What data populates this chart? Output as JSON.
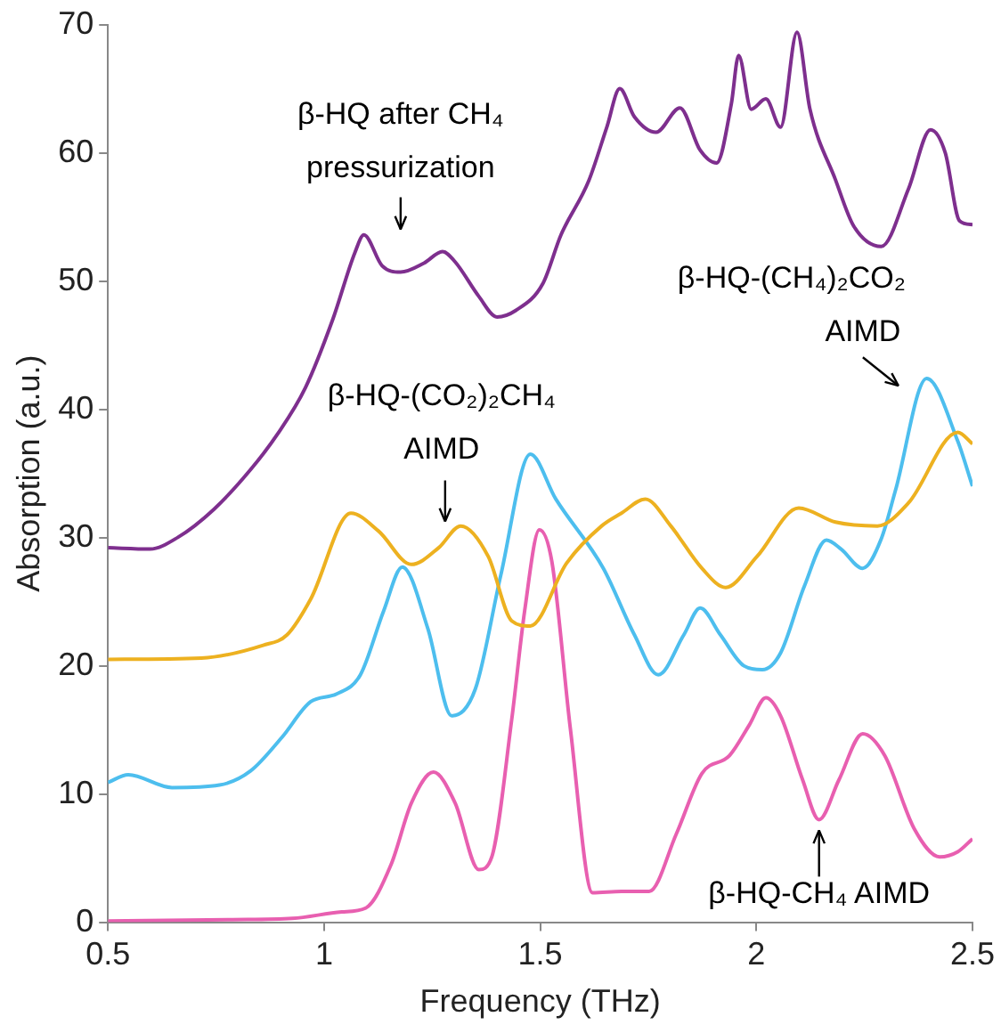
{
  "chart_data": {
    "type": "line",
    "xlabel": "Frequency (THz)",
    "ylabel": "Absorption (a.u.)",
    "xlim": [
      0.5,
      2.5
    ],
    "xticks": [
      0.5,
      1,
      1.5,
      2,
      2.5
    ],
    "ylim": [
      0,
      70
    ],
    "yticks": [
      0,
      10,
      20,
      30,
      40,
      50,
      60,
      70
    ],
    "grid": false,
    "legend": false,
    "series": [
      {
        "color": "#7e2f8e",
        "x": [
          0.5,
          0.597,
          0.661,
          0.745,
          0.83,
          0.893,
          0.957,
          1.02,
          1.071,
          1.092,
          1.134,
          1.177,
          1.231,
          1.274,
          1.303,
          1.358,
          1.4,
          1.443,
          1.506,
          1.548,
          1.612,
          1.654,
          1.684,
          1.718,
          1.768,
          1.823,
          1.87,
          1.908,
          1.942,
          1.959,
          1.988,
          2.022,
          2.056,
          2.094,
          2.124,
          2.183,
          2.225,
          2.289,
          2.352,
          2.403,
          2.437,
          2.47,
          2.5
        ],
        "values": [
          29.2,
          29.1,
          30,
          32.2,
          35.3,
          38.1,
          41.7,
          47,
          52.2,
          53.6,
          51.2,
          50.7,
          51.4,
          52.3,
          51.5,
          48.8,
          47.2,
          47.7,
          49.8,
          53.6,
          57.8,
          62,
          65,
          62.8,
          61.6,
          63.5,
          60.2,
          59.2,
          63.8,
          67.6,
          63.4,
          64.2,
          62,
          69.4,
          63.4,
          57.9,
          54.3,
          52.7,
          57.2,
          61.8,
          60,
          54.7,
          54.4
        ]
      },
      {
        "color": "#edb120",
        "x": [
          0.5,
          0.716,
          0.859,
          0.914,
          0.969,
          1.062,
          1.126,
          1.202,
          1.265,
          1.316,
          1.38,
          1.434,
          1.477,
          1.561,
          1.642,
          1.688,
          1.743,
          1.802,
          1.874,
          1.929,
          2.001,
          2.098,
          2.183,
          2.28,
          2.352,
          2.466,
          2.5
        ],
        "values": [
          20.5,
          20.6,
          21.6,
          22.4,
          25.2,
          31.9,
          30.5,
          27.9,
          29.2,
          30.9,
          28.5,
          23.5,
          23.1,
          28,
          30.9,
          31.9,
          33,
          30.9,
          27.6,
          26.1,
          28.5,
          32.3,
          31.2,
          30.9,
          32.7,
          38.2,
          37.3
        ]
      },
      {
        "color": "#4dbeee",
        "x": [
          0.5,
          0.547,
          0.648,
          0.758,
          0.83,
          0.902,
          0.969,
          1.029,
          1.084,
          1.138,
          1.181,
          1.24,
          1.295,
          1.35,
          1.409,
          1.477,
          1.536,
          1.646,
          1.718,
          1.773,
          1.832,
          1.87,
          1.917,
          1.971,
          2.014,
          2.056,
          2.111,
          2.162,
          2.196,
          2.246,
          2.289,
          2.322,
          2.394,
          2.466,
          2.5
        ],
        "values": [
          10.9,
          11.5,
          10.5,
          10.7,
          11.8,
          14.4,
          17.2,
          17.8,
          19.3,
          24.3,
          27.7,
          22.9,
          16.1,
          18.2,
          27.1,
          36.5,
          33,
          27.6,
          22.4,
          19.3,
          22.4,
          24.5,
          22.4,
          20,
          19.7,
          21,
          26.2,
          29.8,
          29.1,
          27.6,
          29.9,
          33.7,
          42.4,
          37.5,
          34
        ]
      },
      {
        "color": "#e85fb0",
        "x": [
          0.5,
          0.788,
          0.927,
          1.041,
          1.096,
          1.155,
          1.202,
          1.253,
          1.303,
          1.358,
          1.388,
          1.434,
          1.464,
          1.498,
          1.527,
          1.57,
          1.621,
          1.688,
          1.752,
          1.815,
          1.874,
          1.938,
          1.984,
          2.022,
          2.056,
          2.107,
          2.145,
          2.191,
          2.246,
          2.297,
          2.365,
          2.424,
          2.466,
          2.5
        ],
        "values": [
          0.1,
          0.2,
          0.3,
          0.8,
          1.1,
          4.5,
          9.3,
          11.7,
          9.3,
          4.1,
          5.1,
          15.8,
          24.3,
          30.6,
          28.1,
          15,
          2.3,
          2.4,
          2.4,
          6.9,
          11.6,
          13,
          15.4,
          17.5,
          16.1,
          11.1,
          8,
          11.1,
          14.7,
          13,
          7.3,
          5.1,
          5.5,
          6.5
        ]
      }
    ],
    "annotations": [
      {
        "text": "β-HQ after CH₄\npressurization",
        "x": 1.177,
        "y": 50.7
      },
      {
        "text": "β-HQ-(CO₂)₂CH₄\nAIMD",
        "x": 1.28,
        "y": 30.7
      },
      {
        "text": "β-HQ-(CH₄)₂CO₂\nAIMD",
        "x": 2.37,
        "y": 41
      },
      {
        "text": "β-HQ-CH₄ AIMD",
        "x": 2.145,
        "y": 8
      }
    ]
  }
}
